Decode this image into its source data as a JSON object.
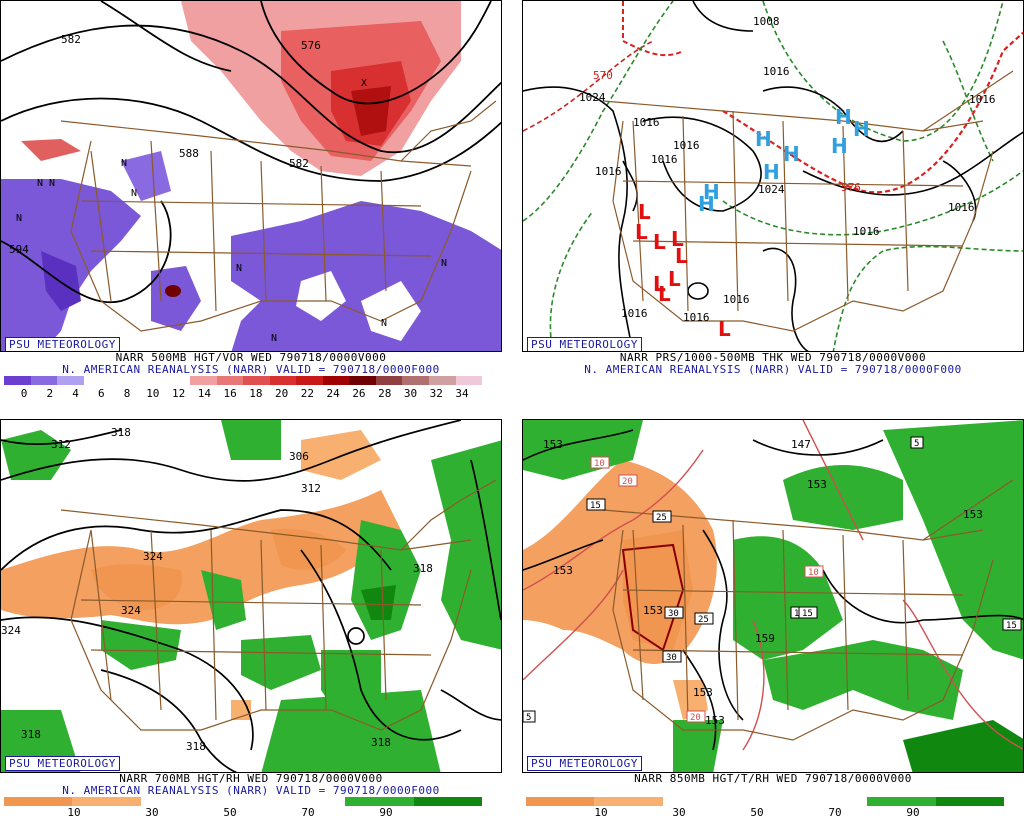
{
  "panels": {
    "p1": {
      "logo": "PSU METEOROLOGY",
      "caption1": "NARR 500MB HGT/VOR WED 790718/0000V000",
      "caption2": "N. AMERICAN REANALYSIS (NARR) VALID = 790718/0000F000",
      "colors": [
        "#6a3fd0",
        "#8a6ae0",
        "#b0a0f0",
        "#ffffff",
        "#ffffff",
        "#ffffff",
        "#ffffff",
        "#f0a0a0",
        "#e87878",
        "#e05050",
        "#d83030",
        "#c81818",
        "#a00000",
        "#700000",
        "#904040",
        "#b07070",
        "#d0a0a0",
        "#f0c8d8"
      ],
      "ticks": [
        "0",
        "2",
        "4",
        "6",
        "8",
        "10",
        "12",
        "14",
        "16",
        "18",
        "20",
        "22",
        "24",
        "26",
        "28",
        "30",
        "32",
        "34"
      ],
      "contour_labels": [
        "582",
        "576",
        "588",
        "582",
        "594"
      ]
    },
    "p2": {
      "logo": "PSU METEOROLOGY",
      "caption1": "NARR PRS/1000-500MB THK WED 790718/0000V000",
      "caption2": "N. AMERICAN REANALYSIS (NARR) VALID = 790718/0000F000",
      "contour_labels": [
        "1008",
        "1024",
        "1016",
        "570",
        "1016",
        "1016",
        "1016",
        "1016",
        "1024",
        "1016",
        "1016",
        "1016",
        "1016",
        "1016",
        "1016",
        "576"
      ],
      "high": "H",
      "low": "L"
    },
    "p3": {
      "logo": "PSU METEOROLOGY",
      "caption1": "NARR 700MB HGT/RH WED 790718/0000V000",
      "caption2": "N. AMERICAN REANALYSIS (NARR) VALID = 790718/0000F000",
      "colors": [
        "#f09650",
        "#f8b070",
        "#ffffff",
        "#ffffff",
        "#ffffff",
        "#30b030",
        "#108810"
      ],
      "ticks": [
        "10",
        "30",
        "50",
        "70",
        "90"
      ],
      "contour_labels": [
        "312",
        "318",
        "306",
        "312",
        "324",
        "324",
        "318",
        "324",
        "318",
        "318",
        "318"
      ]
    },
    "p4": {
      "logo": "PSU METEOROLOGY",
      "caption1": "NARR 850MB HGT/T/RH WED 790718/0000V000",
      "colors": [
        "#f09650",
        "#f8b070",
        "#ffffff",
        "#ffffff",
        "#ffffff",
        "#30b030",
        "#108810"
      ],
      "ticks": [
        "10",
        "30",
        "50",
        "70",
        "90"
      ],
      "contour_labels": [
        "153",
        "147",
        "153",
        "153",
        "153",
        "159",
        "153",
        "153",
        "153"
      ],
      "temp_boxes": [
        "5",
        "10",
        "20",
        "15",
        "25",
        "30",
        "25",
        "30",
        "15",
        "10",
        "15",
        "15",
        "20",
        "5"
      ]
    }
  }
}
